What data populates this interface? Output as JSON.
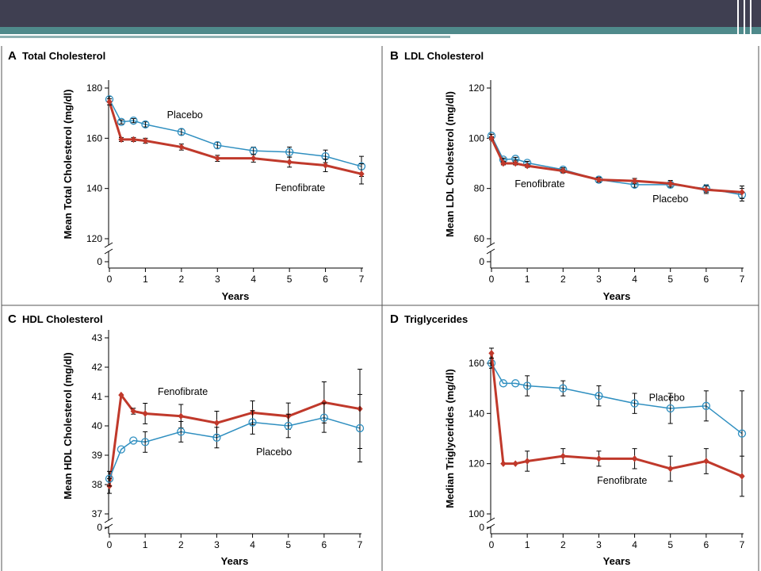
{
  "colors": {
    "fenofibrate": "#c0392b",
    "placebo": "#2f8fc0",
    "axis": "#000000",
    "slide_bar": "#3f3f51",
    "slide_accent": "#4f8a8b"
  },
  "chart_data": [
    {
      "type": "line",
      "panel": "A",
      "title": "Total Cholesterol",
      "xlabel": "Years",
      "ylabel": "Mean Total Cholesterol (mg/dl)",
      "xlim": [
        0,
        7
      ],
      "ylim": [
        120,
        180
      ],
      "y_ticks": [
        120,
        140,
        160,
        180
      ],
      "x_ticks": [
        0,
        1,
        2,
        3,
        4,
        5,
        6,
        7
      ],
      "axis_break": true,
      "series": [
        {
          "name": "Placebo",
          "marker": "circle",
          "x": [
            0,
            0.33,
            0.67,
            1,
            2,
            3,
            4,
            5,
            6,
            7
          ],
          "y": [
            175.5,
            166.5,
            167,
            165.5,
            162.5,
            157.2,
            155,
            154.5,
            152.8,
            148.8
          ],
          "err": [
            1.2,
            0.8,
            0.8,
            1.0,
            1.2,
            1.2,
            1.5,
            2.0,
            2.5,
            4.0
          ]
        },
        {
          "name": "Fenofibrate",
          "marker": "diamond",
          "x": [
            0,
            0.33,
            0.67,
            1,
            2,
            3,
            4,
            5,
            6,
            7
          ],
          "y": [
            174.5,
            159.5,
            159.5,
            159,
            156.5,
            152,
            152,
            150.5,
            149.2,
            145.8
          ],
          "err": [
            1.2,
            0.8,
            0.8,
            1.0,
            1.2,
            1.2,
            1.5,
            2.0,
            2.5,
            4.0
          ]
        }
      ],
      "annotations": [
        {
          "text": "Placebo",
          "x": 1.6,
          "y": 168
        },
        {
          "text": "Fenofibrate",
          "x": 4.6,
          "y": 139
        }
      ]
    },
    {
      "type": "line",
      "panel": "B",
      "title": "LDL Cholesterol",
      "xlabel": "Years",
      "ylabel": "Mean LDL Cholesterol (mg/dl)",
      "xlim": [
        0,
        7
      ],
      "ylim": [
        60,
        120
      ],
      "y_ticks": [
        60,
        80,
        100,
        120
      ],
      "x_ticks": [
        0,
        1,
        2,
        3,
        4,
        5,
        6,
        7
      ],
      "axis_break": true,
      "series": [
        {
          "name": "Placebo",
          "marker": "circle",
          "x": [
            0,
            0.33,
            0.67,
            1,
            2,
            3,
            4,
            5,
            6,
            7
          ],
          "y": [
            101,
            91.5,
            91.8,
            90.2,
            87.5,
            83.5,
            81.5,
            81.5,
            80,
            77.5
          ],
          "err": [
            0.6,
            0.6,
            0.6,
            0.6,
            0.8,
            0.9,
            1.0,
            1.2,
            1.5,
            2.5
          ]
        },
        {
          "name": "Fenofibrate",
          "marker": "diamond",
          "x": [
            0,
            0.33,
            0.67,
            1,
            2,
            3,
            4,
            5,
            6,
            7
          ],
          "y": [
            100,
            90,
            90,
            89,
            87,
            83.5,
            83,
            82,
            79.5,
            78.5
          ],
          "err": [
            0.6,
            0.6,
            0.6,
            0.6,
            0.8,
            0.9,
            1.0,
            1.2,
            1.5,
            2.5
          ]
        }
      ],
      "annotations": [
        {
          "text": "Fenofibrate",
          "x": 0.65,
          "y": 80.5
        },
        {
          "text": "Placebo",
          "x": 4.5,
          "y": 74.5
        }
      ]
    },
    {
      "type": "line",
      "panel": "C",
      "title": "HDL Cholesterol",
      "xlabel": "Years",
      "ylabel": "Mean HDL Cholesterol (mg/dl)",
      "xlim": [
        0,
        7
      ],
      "ylim": [
        37,
        43
      ],
      "y_ticks": [
        37,
        38,
        39,
        40,
        41,
        42,
        43
      ],
      "x_ticks": [
        0,
        1,
        2,
        3,
        4,
        5,
        6,
        7
      ],
      "axis_break": true,
      "series": [
        {
          "name": "Fenofibrate",
          "marker": "diamond",
          "x": [
            0,
            0.33,
            0.67,
            1,
            2,
            3,
            4,
            5,
            6,
            7
          ],
          "y": [
            37.95,
            41.05,
            40.5,
            40.42,
            40.33,
            40.1,
            40.45,
            40.33,
            40.8,
            40.58
          ],
          "err": [
            0.25,
            0.0,
            0.1,
            0.35,
            0.4,
            0.4,
            0.4,
            0.45,
            0.7,
            1.35
          ]
        },
        {
          "name": "Placebo",
          "marker": "circle",
          "x": [
            0,
            0.33,
            0.67,
            1,
            2,
            3,
            4,
            5,
            6,
            7
          ],
          "y": [
            38.2,
            39.2,
            39.5,
            39.45,
            39.8,
            39.6,
            40.12,
            40.0,
            40.28,
            39.92
          ],
          "err": [
            0.25,
            0.0,
            0.0,
            0.35,
            0.35,
            0.35,
            0.4,
            0.4,
            0.5,
            1.15
          ]
        }
      ],
      "annotations": [
        {
          "text": "Fenofibrate",
          "x": 1.35,
          "y": 41.05
        },
        {
          "text": "Placebo",
          "x": 4.1,
          "y": 39.0
        }
      ]
    },
    {
      "type": "line",
      "panel": "D",
      "title": "Triglycerides",
      "xlabel": "Years",
      "ylabel": "Median Triglycerides (mg/dl)",
      "xlim": [
        0,
        7
      ],
      "ylim": [
        100,
        160
      ],
      "y_ticks": [
        100,
        120,
        140,
        160
      ],
      "x_ticks": [
        0,
        1,
        2,
        3,
        4,
        5,
        6,
        7
      ],
      "axis_break": true,
      "series": [
        {
          "name": "Placebo",
          "marker": "circle",
          "x": [
            0,
            0.33,
            0.67,
            1,
            2,
            3,
            4,
            5,
            6,
            7
          ],
          "y": [
            160,
            152,
            152,
            151,
            150,
            147,
            144,
            142,
            143,
            132
          ],
          "err": [
            2,
            0,
            0,
            4,
            3,
            4,
            4,
            6,
            6,
            17
          ]
        },
        {
          "name": "Fenofibrate",
          "marker": "diamond",
          "x": [
            0,
            0.33,
            0.67,
            1,
            2,
            3,
            4,
            5,
            6,
            7
          ],
          "y": [
            164,
            120,
            120,
            121,
            123,
            122,
            122,
            118,
            121,
            115
          ],
          "err": [
            2,
            0,
            0,
            4,
            3,
            3,
            4,
            5,
            5,
            8
          ]
        }
      ],
      "annotations": [
        {
          "text": "Placebo",
          "x": 4.4,
          "y": 145
        },
        {
          "text": "Fenofibrate",
          "x": 2.95,
          "y": 112
        }
      ]
    }
  ]
}
